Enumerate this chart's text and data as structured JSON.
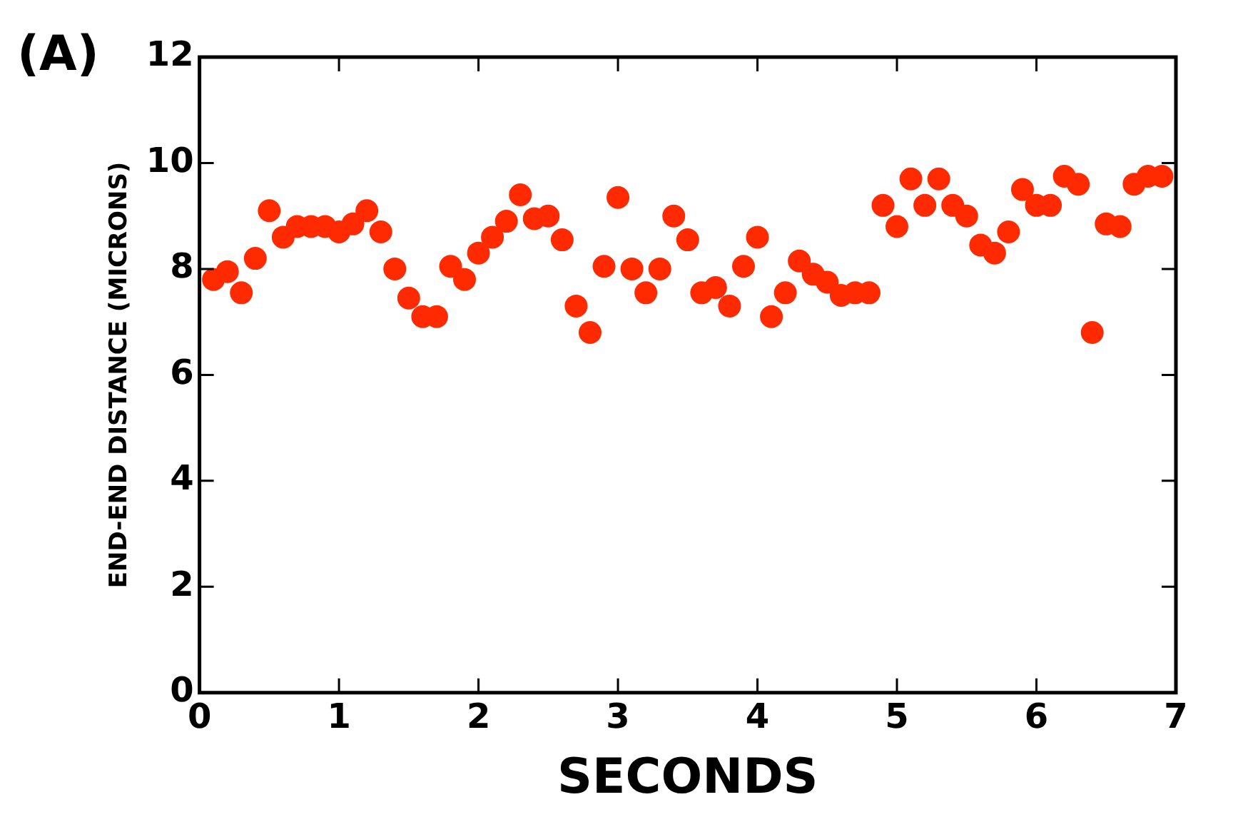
{
  "chart_data": {
    "type": "scatter",
    "xlabel": "SECONDS",
    "ylabel": "END-END DISTANCE (MICRONS)",
    "annotations": [
      "(A)"
    ],
    "x": [
      0.1,
      0.2,
      0.3,
      0.4,
      0.5,
      0.6,
      0.7,
      0.8,
      0.9,
      1.0,
      1.1,
      1.2,
      1.3,
      1.4,
      1.5,
      1.6,
      1.7,
      1.8,
      1.9,
      2.0,
      2.1,
      2.2,
      2.3,
      2.4,
      2.5,
      2.6,
      2.7,
      2.8,
      2.9,
      3.0,
      3.1,
      3.2,
      3.3,
      3.4,
      3.5,
      3.6,
      3.7,
      3.8,
      3.9,
      4.0,
      4.1,
      4.2,
      4.3,
      4.4,
      4.5,
      4.6,
      4.7,
      4.8,
      4.9,
      5.0,
      5.1,
      5.2,
      5.3,
      5.4,
      5.5,
      5.6,
      5.7,
      5.8,
      5.9,
      6.0,
      6.1,
      6.2,
      6.3,
      6.4,
      6.5,
      6.6,
      6.7,
      6.8,
      6.9
    ],
    "series": [
      {
        "color": "#ff2a00",
        "values": [
          7.8,
          7.95,
          7.55,
          8.2,
          9.1,
          8.6,
          8.8,
          8.8,
          8.8,
          8.7,
          8.85,
          9.1,
          8.7,
          8.0,
          7.45,
          7.1,
          7.1,
          8.05,
          7.8,
          8.3,
          8.6,
          8.9,
          9.4,
          8.95,
          9.0,
          8.55,
          7.3,
          6.8,
          8.05,
          9.35,
          8.0,
          7.55,
          8.0,
          9.0,
          8.55,
          7.55,
          7.65,
          7.3,
          8.05,
          8.6,
          7.1,
          7.55,
          8.15,
          7.9,
          7.75,
          7.5,
          7.55,
          7.55,
          9.2,
          8.8,
          9.7,
          9.2,
          9.7,
          9.2,
          9.0,
          8.45,
          8.3,
          8.7,
          9.5,
          9.2,
          9.2,
          9.75,
          9.6,
          6.8,
          8.85,
          8.8,
          9.6,
          9.75,
          9.75
        ]
      }
    ],
    "xlim": [
      0,
      7
    ],
    "xticks": [
      0,
      1,
      2,
      3,
      4,
      5,
      6,
      7
    ],
    "ylim": [
      0,
      12
    ],
    "yticks": [
      0,
      2,
      4,
      6,
      8,
      10,
      12
    ],
    "grid": false,
    "legend": false,
    "marker": "circle"
  }
}
